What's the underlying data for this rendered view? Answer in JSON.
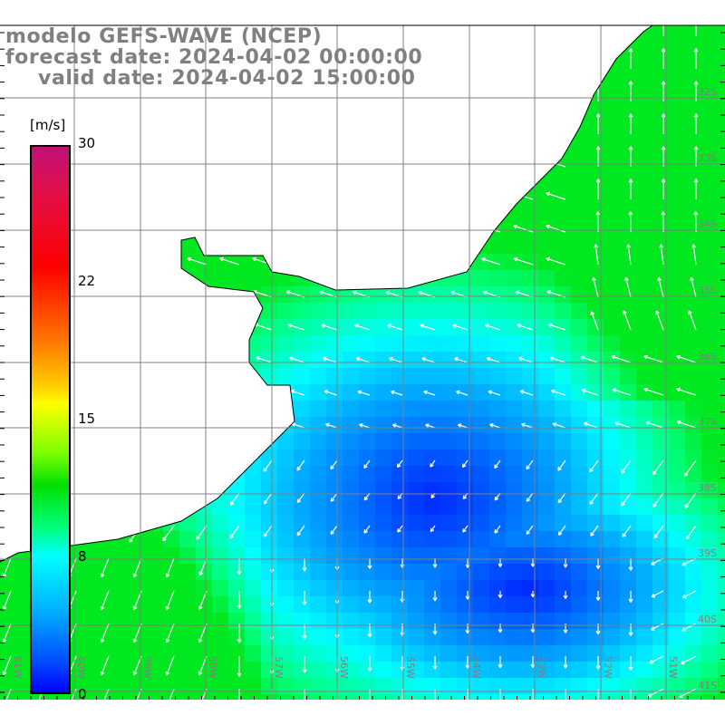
{
  "title": {
    "line1": "modelo GEFS-WAVE (NCEP)",
    "line2": "forecast date: 2024-04-02 00:00:00",
    "line3": "valid date: 2024-04-02 15:00:00"
  },
  "colorbar": {
    "unit": "[m/s]",
    "ticks": [
      "30",
      "22",
      "15",
      "8",
      "0"
    ],
    "colors": [
      "#c0107a",
      "#ff0000",
      "#ff7a00",
      "#ffff00",
      "#00e000",
      "#00ffff",
      "#0050ff",
      "#0000ff"
    ]
  },
  "lat_labels": [
    "32S",
    "33S",
    "34S",
    "35S",
    "36S",
    "37S",
    "38S",
    "39S",
    "40S",
    "41S"
  ],
  "lon_labels": [
    "61W",
    "60W",
    "59W",
    "58W",
    "57W",
    "56W",
    "55W",
    "54W",
    "53W",
    "52W",
    "51W"
  ],
  "colors": {
    "grid": "#808080",
    "coast": "#000000",
    "arrow": "#ffffff",
    "label": "#808080"
  }
}
